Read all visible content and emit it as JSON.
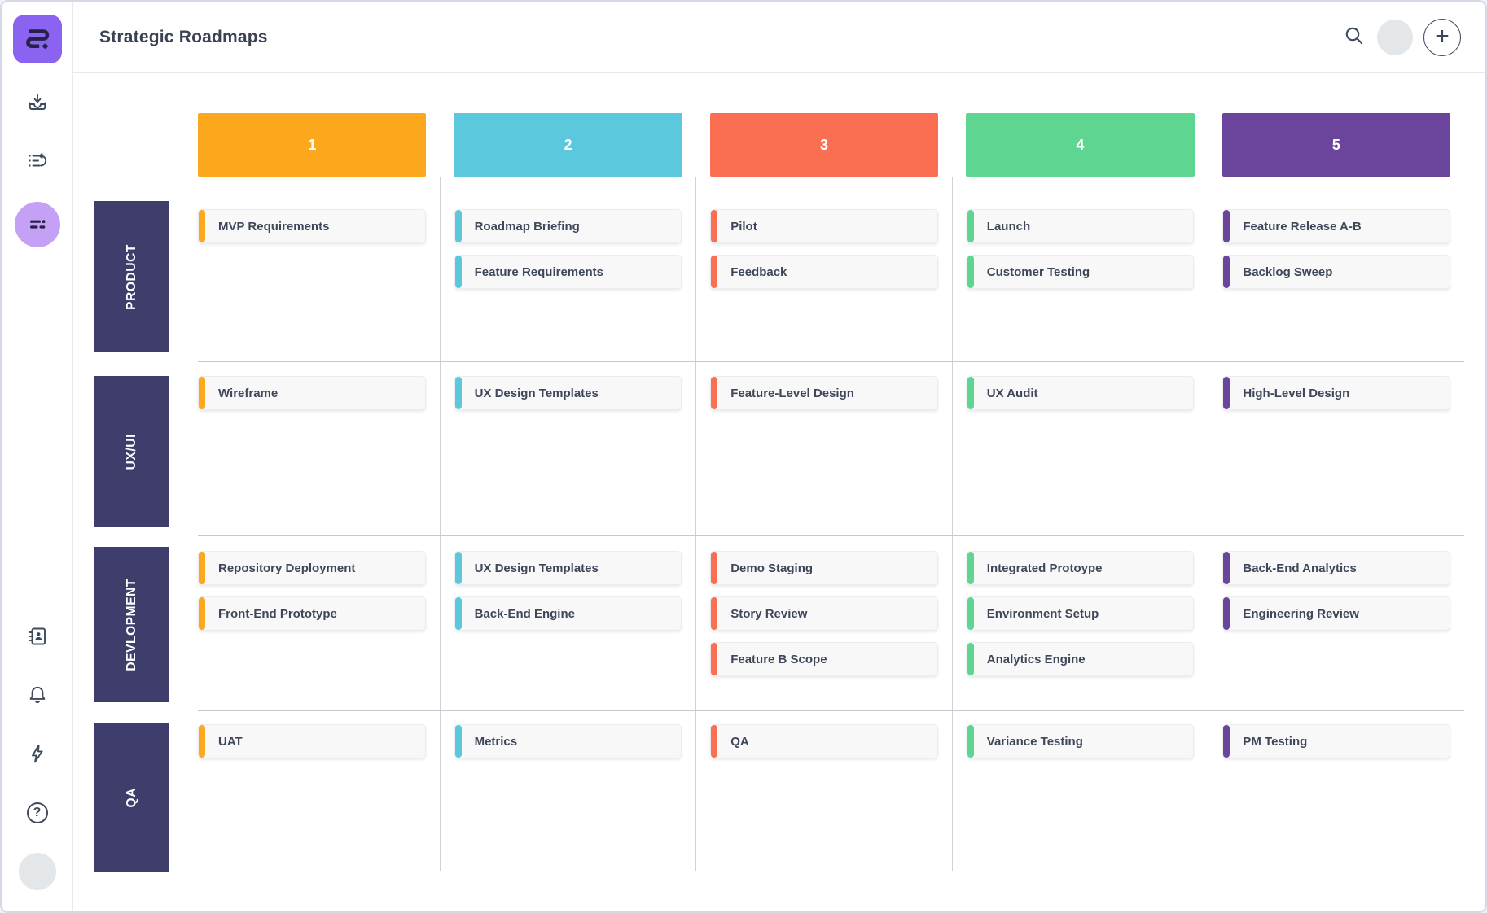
{
  "header": {
    "title": "Strategic Roadmaps",
    "add_label": "+",
    "icons": [
      "search-icon",
      "user-avatar",
      "add-button"
    ]
  },
  "sidebar": {
    "logo_icon": "roadmunk-logo",
    "help_glyph": "?",
    "top_items": [
      {
        "id": "import",
        "icon": "inbox-import-icon",
        "active": false
      },
      {
        "id": "backlog",
        "icon": "backlog-list-icon",
        "active": false
      },
      {
        "id": "roadmap-view",
        "icon": "swimlane-icon",
        "active": true
      }
    ],
    "bottom_items": [
      {
        "id": "contacts",
        "icon": "contacts-book-icon"
      },
      {
        "id": "notifications",
        "icon": "bell-icon"
      },
      {
        "id": "activity",
        "icon": "lightning-icon"
      },
      {
        "id": "help",
        "icon": "help-circle-icon"
      },
      {
        "id": "profile",
        "icon": "avatar"
      }
    ]
  },
  "board": {
    "row_label_bg": "#3e3d6c",
    "columns": [
      {
        "label": "1",
        "color": "#fba81c"
      },
      {
        "label": "2",
        "color": "#5bc8dd"
      },
      {
        "label": "3",
        "color": "#fa6e51"
      },
      {
        "label": "4",
        "color": "#5fd592"
      },
      {
        "label": "5",
        "color": "#6b449b"
      }
    ],
    "rows": [
      {
        "label": "PRODUCT",
        "cells": [
          [
            "MVP Requirements"
          ],
          [
            "Roadmap Briefing",
            "Feature Requirements"
          ],
          [
            "Pilot",
            "Feedback"
          ],
          [
            "Launch",
            "Customer Testing"
          ],
          [
            "Feature Release A-B",
            "Backlog Sweep"
          ]
        ]
      },
      {
        "label": "UX/UI",
        "cells": [
          [
            "Wireframe"
          ],
          [
            "UX Design Templates"
          ],
          [
            "Feature-Level Design"
          ],
          [
            "UX Audit"
          ],
          [
            "High-Level Design"
          ]
        ]
      },
      {
        "label": "DEVLOPMENT",
        "cells": [
          [
            "Repository Deployment",
            "Front-End Prototype"
          ],
          [
            "UX Design Templates",
            "Back-End Engine"
          ],
          [
            "Demo Staging",
            "Story Review",
            "Feature B Scope"
          ],
          [
            "Integrated Protoype",
            "Environment Setup",
            "Analytics Engine"
          ],
          [
            "Back-End Analytics",
            "Engineering Review"
          ]
        ]
      },
      {
        "label": "QA",
        "cells": [
          [
            "UAT"
          ],
          [
            "Metrics"
          ],
          [
            "QA"
          ],
          [
            "Variance Testing"
          ],
          [
            "PM Testing"
          ]
        ]
      }
    ]
  },
  "colors": {
    "logo_bg": "#8a63f0",
    "logo_glyph": "#262247",
    "active_nav_bg": "#c5a1f5",
    "icon": "#3e4a5b",
    "row_label_bg": "#3e3d6c",
    "card_bg": "#f8f8f9",
    "card_text": "#3d4759",
    "divider_vertical": "#d2d3d9",
    "divider_horizontal": "#c7c8d0",
    "frame_border": "#d4dae4"
  }
}
